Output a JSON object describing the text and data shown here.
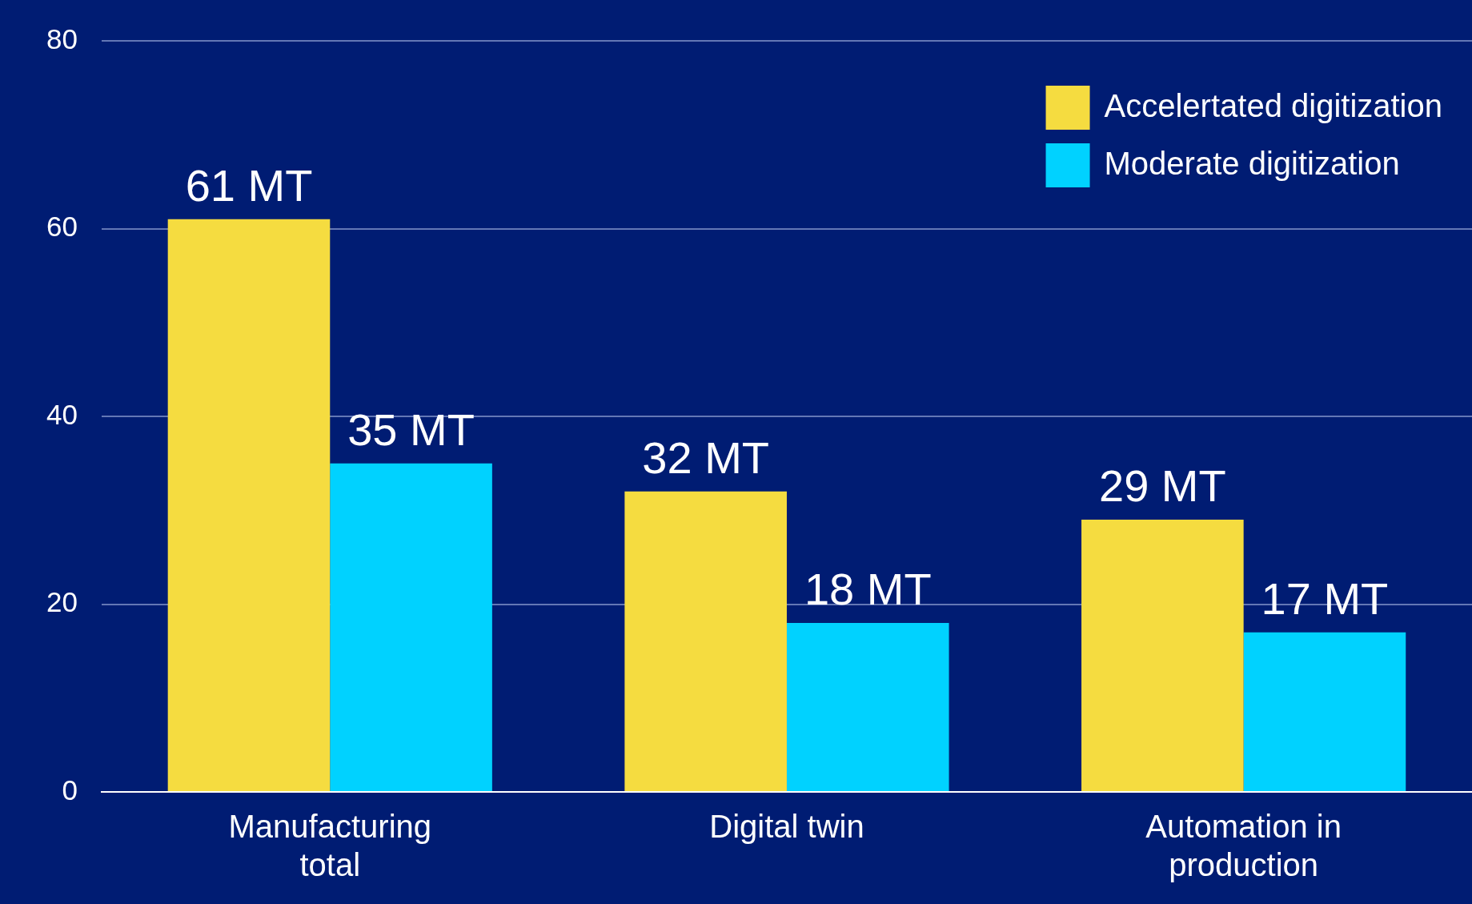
{
  "chart_data": {
    "type": "bar",
    "categories": [
      "Manufacturing total",
      "Digital twin",
      "Automation in production"
    ],
    "series": [
      {
        "name": "Accelertated digitization",
        "color": "#f5dc40",
        "values": [
          61,
          32,
          29
        ],
        "value_labels": [
          "61 MT",
          "32 MT",
          "29 MT"
        ]
      },
      {
        "name": "Moderate digitization",
        "color": "#00d2ff",
        "values": [
          35,
          18,
          17
        ],
        "value_labels": [
          "35 MT",
          "18 MT",
          "17 MT"
        ]
      }
    ],
    "ylim": [
      0,
      80
    ],
    "yticks": [
      0,
      20,
      40,
      60,
      80
    ],
    "grid": "y",
    "legend": "top right"
  }
}
